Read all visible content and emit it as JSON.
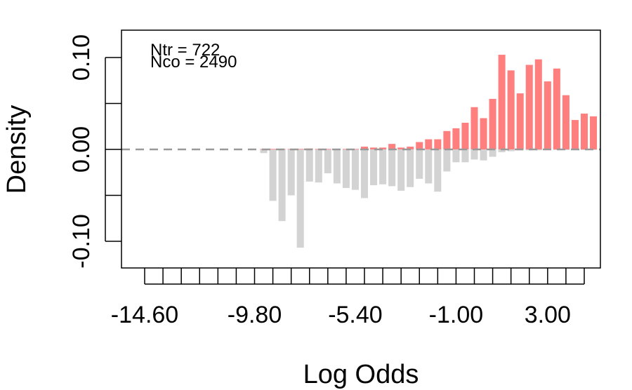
{
  "chart_data": {
    "type": "bar",
    "title": "",
    "xlabel": "Log Odds",
    "ylabel": "Density",
    "annotations": {
      "treated": "Ntr = 722",
      "control": "Nco = 2490"
    },
    "colors": {
      "treated": "#ff7f7f",
      "control": "#d3d3d3",
      "zero_line": "#999999"
    },
    "ylim": [
      -0.13,
      0.13
    ],
    "y_ticks": [
      {
        "value": -0.1,
        "label": "-0.10"
      },
      {
        "value": 0.0,
        "label": "0.00"
      },
      {
        "value": 0.1,
        "label": "0.10"
      }
    ],
    "y_minor_ticks": [
      -0.05,
      0.05
    ],
    "bin_width": 0.4,
    "x_tick_labels": [
      {
        "value": -14.6,
        "label": "-14.60"
      },
      {
        "value": -9.8,
        "label": "-9.80"
      },
      {
        "value": -5.4,
        "label": "-5.40"
      },
      {
        "value": -1.0,
        "label": "-1.00"
      },
      {
        "value": 3.0,
        "label": "3.00"
      }
    ],
    "x_tick_marks": [
      -14.6,
      -13.8,
      -13.0,
      -12.2,
      -11.4,
      -10.6,
      -9.8,
      -9.0,
      -8.2,
      -7.4,
      -6.6,
      -5.8,
      -5.0,
      -4.2,
      -3.4,
      -2.6,
      -1.8,
      -1.0,
      -0.2,
      0.6,
      1.4,
      2.2,
      3.0,
      3.8,
      4.6
    ],
    "series": [
      {
        "name": "Ntr",
        "bins": [
          {
            "x": -9.4,
            "value": 0.0005
          },
          {
            "x": -9.0,
            "value": 0.0005
          },
          {
            "x": -8.6,
            "value": 0.0005
          },
          {
            "x": -8.2,
            "value": 0.0005
          },
          {
            "x": -7.8,
            "value": 0.0005
          },
          {
            "x": -7.4,
            "value": 0.001
          },
          {
            "x": -7.0,
            "value": 0.0005
          },
          {
            "x": -6.6,
            "value": 0.0005
          },
          {
            "x": -6.2,
            "value": 0.0005
          },
          {
            "x": -5.8,
            "value": 0.0005
          },
          {
            "x": -5.4,
            "value": 0.0005
          },
          {
            "x": -5.0,
            "value": 0.003
          },
          {
            "x": -4.6,
            "value": 0.002
          },
          {
            "x": -4.2,
            "value": 0.002
          },
          {
            "x": -3.8,
            "value": 0.006
          },
          {
            "x": -3.4,
            "value": 0.002
          },
          {
            "x": -3.0,
            "value": 0.003
          },
          {
            "x": -2.6,
            "value": 0.008
          },
          {
            "x": -2.2,
            "value": 0.011
          },
          {
            "x": -1.8,
            "value": 0.011
          },
          {
            "x": -1.4,
            "value": 0.02
          },
          {
            "x": -1.0,
            "value": 0.023
          },
          {
            "x": -0.6,
            "value": 0.029
          },
          {
            "x": -0.2,
            "value": 0.046
          },
          {
            "x": 0.2,
            "value": 0.034
          },
          {
            "x": 0.6,
            "value": 0.055
          },
          {
            "x": 1.0,
            "value": 0.103
          },
          {
            "x": 1.4,
            "value": 0.086
          },
          {
            "x": 1.8,
            "value": 0.061
          },
          {
            "x": 2.2,
            "value": 0.092
          },
          {
            "x": 2.6,
            "value": 0.098
          },
          {
            "x": 3.0,
            "value": 0.074
          },
          {
            "x": 3.4,
            "value": 0.088
          },
          {
            "x": 3.8,
            "value": 0.059
          },
          {
            "x": 4.2,
            "value": 0.032
          },
          {
            "x": 4.6,
            "value": 0.039
          },
          {
            "x": 5.0,
            "value": 0.036
          }
        ]
      },
      {
        "name": "Nco",
        "bins": [
          {
            "x": -9.4,
            "value": -0.004
          },
          {
            "x": -9.0,
            "value": -0.056
          },
          {
            "x": -8.6,
            "value": -0.078
          },
          {
            "x": -8.2,
            "value": -0.05
          },
          {
            "x": -7.8,
            "value": -0.107
          },
          {
            "x": -7.4,
            "value": -0.035
          },
          {
            "x": -7.0,
            "value": -0.036
          },
          {
            "x": -6.6,
            "value": -0.026
          },
          {
            "x": -6.2,
            "value": -0.037
          },
          {
            "x": -5.8,
            "value": -0.042
          },
          {
            "x": -5.4,
            "value": -0.044
          },
          {
            "x": -5.0,
            "value": -0.053
          },
          {
            "x": -4.6,
            "value": -0.039
          },
          {
            "x": -4.2,
            "value": -0.038
          },
          {
            "x": -3.8,
            "value": -0.04
          },
          {
            "x": -3.4,
            "value": -0.045
          },
          {
            "x": -3.0,
            "value": -0.041
          },
          {
            "x": -2.6,
            "value": -0.032
          },
          {
            "x": -2.2,
            "value": -0.037
          },
          {
            "x": -1.8,
            "value": -0.046
          },
          {
            "x": -1.4,
            "value": -0.024
          },
          {
            "x": -1.0,
            "value": -0.014
          },
          {
            "x": -0.6,
            "value": -0.014
          },
          {
            "x": -0.2,
            "value": -0.011
          },
          {
            "x": 0.2,
            "value": -0.012
          },
          {
            "x": 0.6,
            "value": -0.008
          },
          {
            "x": 1.0,
            "value": -0.003
          },
          {
            "x": 1.4,
            "value": -0.002
          },
          {
            "x": 1.8,
            "value": -0.001
          },
          {
            "x": 2.2,
            "value": -0.001
          },
          {
            "x": 2.6,
            "value": -0.001
          },
          {
            "x": 3.0,
            "value": -0.0005
          },
          {
            "x": 3.4,
            "value": -0.0005
          },
          {
            "x": 3.8,
            "value": -0.0005
          },
          {
            "x": 4.2,
            "value": -0.0005
          },
          {
            "x": 4.6,
            "value": -0.0005
          },
          {
            "x": 5.0,
            "value": -0.0005
          }
        ]
      }
    ]
  }
}
